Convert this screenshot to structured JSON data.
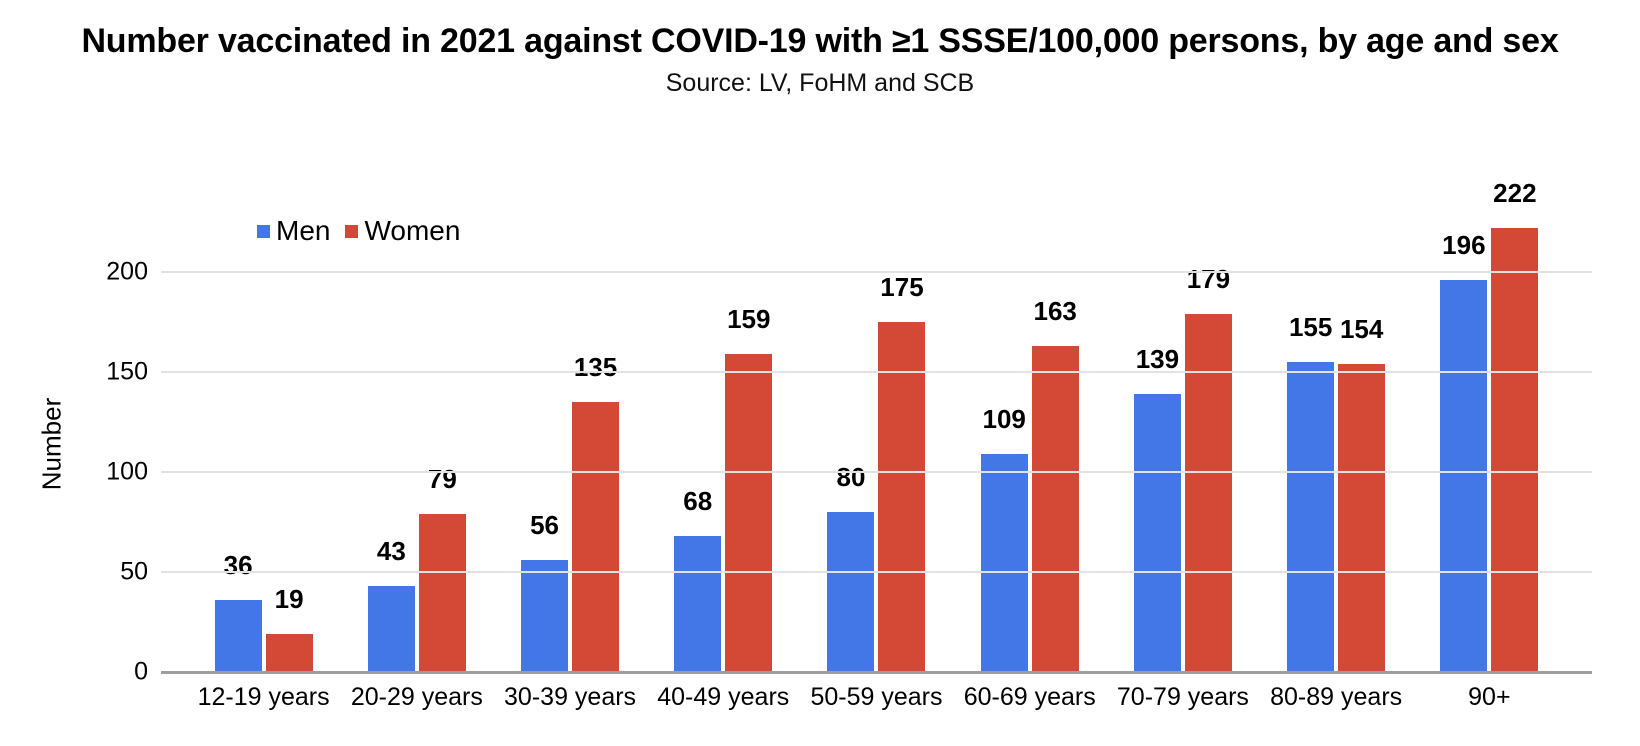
{
  "chart_data": {
    "type": "bar",
    "title": "Number vaccinated in 2021 against COVID-19 with ≥1 SSSE/100,000 persons, by age and sex",
    "subtitle": "Source: LV, FoHM and SCB",
    "ylabel": "Number",
    "xlabel": "",
    "categories": [
      "12-19 years",
      "20-29 years",
      "30-39 years",
      "40-49 years",
      "50-59 years",
      "60-69 years",
      "70-79 years",
      "80-89 years",
      "90+"
    ],
    "series": [
      {
        "name": "Men",
        "color": "#4377E8",
        "values": [
          36,
          43,
          56,
          68,
          80,
          109,
          139,
          155,
          196
        ]
      },
      {
        "name": "Women",
        "color": "#D34935",
        "values": [
          19,
          79,
          135,
          159,
          175,
          163,
          179,
          154,
          222
        ]
      }
    ],
    "y_ticks": [
      0,
      50,
      100,
      150,
      200
    ],
    "ylim": [
      0,
      200
    ],
    "grid": true,
    "legend_position": "top-left",
    "data_labels": true
  },
  "colors": {
    "background": "#ffffff",
    "gridline": "#e2e2e2",
    "axis_line": "#9e9e9e",
    "text": "#000000"
  }
}
